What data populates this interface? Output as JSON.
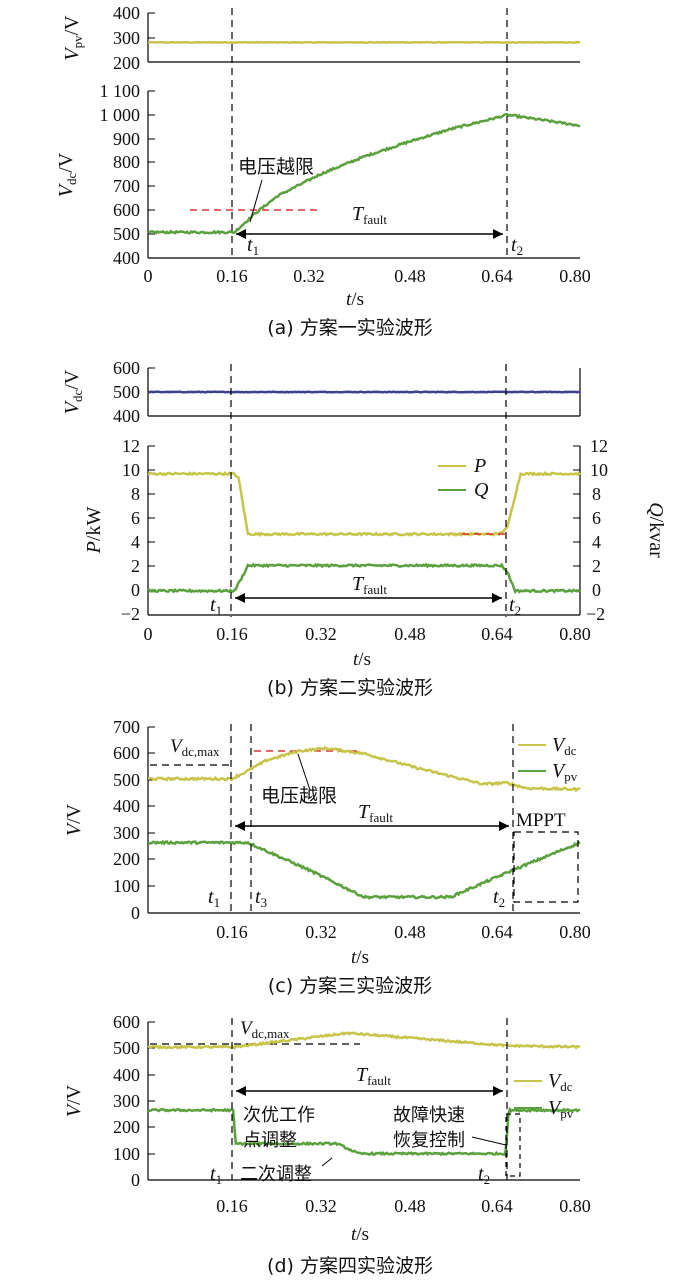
{
  "chart_data": [
    {
      "type": "line",
      "caption": "(a)  方案一实验波形",
      "xlabel": "t/s",
      "xlim": [
        0,
        0.8
      ],
      "x_ticks": [
        "0",
        "0.16",
        "0.32",
        "0.48",
        "0.64",
        "0.80"
      ],
      "panels": [
        {
          "ylabel": "Vpv/V",
          "ylim": [
            200,
            400
          ],
          "y_ticks": [
            "200",
            "300",
            "400"
          ],
          "series": [
            {
              "name": "Vpv",
              "color": "#c8c44a",
              "x": [
                0,
                0.8
              ],
              "values": [
                280,
                280
              ]
            }
          ]
        },
        {
          "ylabel": "Vdc/V",
          "ylim": [
            400,
            1100
          ],
          "y_ticks": [
            "400",
            "500",
            "600",
            "700",
            "800",
            "900",
            "1 000",
            "1 100"
          ],
          "series": [
            {
              "name": "Vdc",
              "color": "#5aa03c",
              "x": [
                0,
                0.16,
                0.2,
                0.24,
                0.32,
                0.4,
                0.48,
                0.56,
                0.64,
                0.665,
                0.8
              ],
              "values": [
                508,
                508,
                590,
                660,
                752,
                825,
                885,
                940,
                985,
                1000,
                955
              ]
            }
          ],
          "ref_lines": [
            {
              "label": "电压越限",
              "y": 600,
              "x": [
                0.08,
                0.34
              ],
              "color": "#e03030"
            }
          ]
        }
      ],
      "events": [
        {
          "label": "t1",
          "x": 0.16
        },
        {
          "label": "t2",
          "x": 0.665
        }
      ],
      "duration_label": "Tfault"
    },
    {
      "type": "line",
      "caption": "(b)  方案二实验波形",
      "xlabel": "t/s",
      "xlim": [
        0,
        0.8
      ],
      "x_ticks": [
        "0",
        "0.16",
        "0.32",
        "0.48",
        "0.64",
        "0.80"
      ],
      "panels": [
        {
          "ylabel": "Vdc/V",
          "ylim": [
            400,
            600
          ],
          "y_ticks": [
            "400",
            "500",
            "600"
          ],
          "series": [
            {
              "name": "Vdc",
              "color": "#404090",
              "x": [
                0,
                0.8
              ],
              "values": [
                500,
                500
              ]
            }
          ]
        },
        {
          "ylabel": "P/kW",
          "ylabel_right": "Q/kvar",
          "ylim": [
            -2,
            12
          ],
          "y_ticks": [
            "−2",
            "0",
            "2",
            "4",
            "6",
            "8",
            "10",
            "12"
          ],
          "series": [
            {
              "name": "P",
              "color": "#c8c44a",
              "x": [
                0,
                0.16,
                0.168,
                0.185,
                0.65,
                0.665,
                0.69,
                0.8
              ],
              "values": [
                9.7,
                9.7,
                9.3,
                4.7,
                4.7,
                5.2,
                9.7,
                9.7
              ]
            },
            {
              "name": "Q",
              "color": "#5aa03c",
              "x": [
                0,
                0.16,
                0.175,
                0.185,
                0.655,
                0.665,
                0.68,
                0.8
              ],
              "values": [
                0,
                0,
                1.2,
                2.1,
                2.1,
                1.6,
                0,
                0
              ]
            }
          ]
        }
      ],
      "events": [
        {
          "label": "t1",
          "x": 0.16
        },
        {
          "label": "t2",
          "x": 0.655
        }
      ],
      "duration_label": "Tfault"
    },
    {
      "type": "line",
      "caption": "(c)  方案三实验波形",
      "xlabel": "t/s",
      "ylabel": "V/V",
      "xlim": [
        0,
        0.8
      ],
      "ylim": [
        0,
        700
      ],
      "x_ticks": [
        "0.16",
        "0.32",
        "0.48",
        "0.64",
        "0.80"
      ],
      "y_ticks": [
        "0",
        "100",
        "200",
        "300",
        "400",
        "500",
        "600",
        "700"
      ],
      "series": [
        {
          "name": "Vdc",
          "color": "#c8c44a",
          "x": [
            0,
            0.155,
            0.18,
            0.22,
            0.28,
            0.33,
            0.4,
            0.5,
            0.62,
            0.665,
            0.7,
            0.8
          ],
          "values": [
            505,
            505,
            530,
            575,
            610,
            620,
            600,
            545,
            485,
            490,
            470,
            465
          ]
        },
        {
          "name": "Vpv",
          "color": "#5aa03c",
          "x": [
            0,
            0.185,
            0.3,
            0.4,
            0.56,
            0.68,
            0.8
          ],
          "values": [
            265,
            265,
            160,
            60,
            60,
            165,
            265
          ]
        }
      ],
      "annotations": [
        {
          "label": "Vdc,max",
          "y": 560
        },
        {
          "label": "电压越限",
          "y": 600,
          "color": "#e03030"
        },
        {
          "label": "MPPT"
        }
      ],
      "events": [
        {
          "label": "t1",
          "x": 0.155
        },
        {
          "label": "t3",
          "x": 0.185
        },
        {
          "label": "t2",
          "x": 0.665
        }
      ],
      "duration_label": "Tfault"
    },
    {
      "type": "line",
      "caption": "(d)  方案四实验波形",
      "xlabel": "t/s",
      "ylabel": "V/V",
      "xlim": [
        0,
        0.8
      ],
      "ylim": [
        0,
        600
      ],
      "x_ticks": [
        "0.16",
        "0.32",
        "0.48",
        "0.64",
        "0.80"
      ],
      "y_ticks": [
        "0",
        "100",
        "200",
        "300",
        "400",
        "500",
        "600"
      ],
      "series": [
        {
          "name": "Vdc",
          "color": "#c8c44a",
          "x": [
            0,
            0.16,
            0.37,
            0.665,
            0.8
          ],
          "values": [
            505,
            505,
            558,
            510,
            505
          ]
        },
        {
          "name": "Vpv",
          "color": "#5aa03c",
          "x": [
            0,
            0.158,
            0.162,
            0.35,
            0.39,
            0.662,
            0.668,
            0.8
          ],
          "values": [
            265,
            265,
            138,
            138,
            100,
            100,
            265,
            265
          ]
        }
      ],
      "annotations": [
        {
          "label": "Vdc,max",
          "y": 560
        },
        {
          "label": "次优工作点调整"
        },
        {
          "label": "二次调整"
        },
        {
          "label": "故障快速恢复控制"
        }
      ],
      "events": [
        {
          "label": "t1",
          "x": 0.16
        },
        {
          "label": "t2",
          "x": 0.665
        }
      ],
      "duration_label": "Tfault"
    }
  ]
}
